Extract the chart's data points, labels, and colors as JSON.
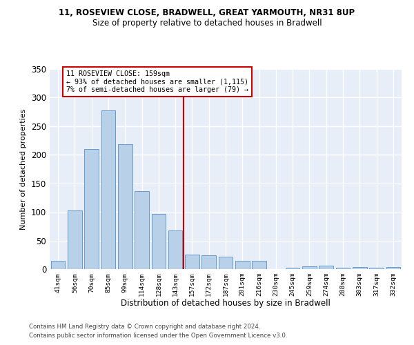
{
  "title1": "11, ROSEVIEW CLOSE, BRADWELL, GREAT YARMOUTH, NR31 8UP",
  "title2": "Size of property relative to detached houses in Bradwell",
  "xlabel": "Distribution of detached houses by size in Bradwell",
  "ylabel": "Number of detached properties",
  "categories": [
    "41sqm",
    "56sqm",
    "70sqm",
    "85sqm",
    "99sqm",
    "114sqm",
    "128sqm",
    "143sqm",
    "157sqm",
    "172sqm",
    "187sqm",
    "201sqm",
    "216sqm",
    "230sqm",
    "245sqm",
    "259sqm",
    "274sqm",
    "288sqm",
    "303sqm",
    "317sqm",
    "332sqm"
  ],
  "values": [
    14,
    102,
    210,
    277,
    218,
    136,
    96,
    67,
    25,
    24,
    22,
    14,
    15,
    0,
    3,
    5,
    6,
    3,
    4,
    3,
    4
  ],
  "bar_color": "#b8d0e8",
  "bar_edge_color": "#6699cc",
  "vline_x_index": 7.5,
  "vline_color": "#cc0000",
  "annotation_text": "11 ROSEVIEW CLOSE: 159sqm\n← 93% of detached houses are smaller (1,115)\n7% of semi-detached houses are larger (79) →",
  "annotation_box_color": "#cc0000",
  "ylim": [
    0,
    350
  ],
  "yticks": [
    0,
    50,
    100,
    150,
    200,
    250,
    300,
    350
  ],
  "bg_color": "#e8eef8",
  "grid_color": "#ffffff",
  "footer1": "Contains HM Land Registry data © Crown copyright and database right 2024.",
  "footer2": "Contains public sector information licensed under the Open Government Licence v3.0."
}
